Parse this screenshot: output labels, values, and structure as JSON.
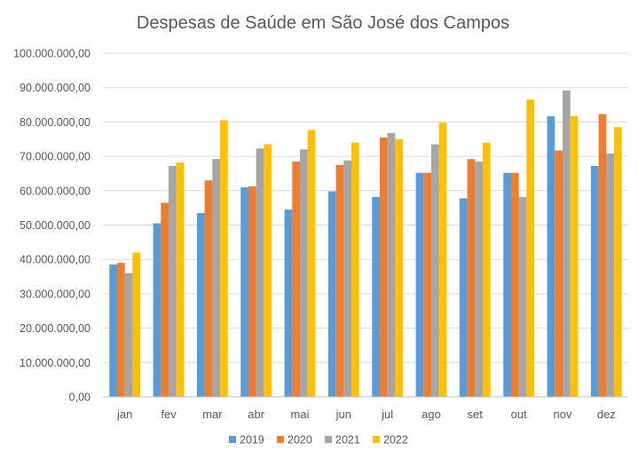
{
  "chart_data": {
    "type": "bar",
    "title": "Despesas de Saúde em São José dos Campos",
    "xlabel": "",
    "ylabel": "",
    "categories": [
      "jan",
      "fev",
      "mar",
      "abr",
      "mai",
      "jun",
      "jul",
      "ago",
      "set",
      "out",
      "nov",
      "dez"
    ],
    "series": [
      {
        "name": "2019",
        "color": "#5B9BD5",
        "values": [
          38500000,
          50500000,
          53500000,
          61000000,
          54500000,
          59800000,
          58200000,
          65200000,
          57800000,
          65200000,
          81700000,
          67200000
        ]
      },
      {
        "name": "2020",
        "color": "#ED7D31",
        "values": [
          39000000,
          56500000,
          63000000,
          61300000,
          68500000,
          67500000,
          75500000,
          65200000,
          69200000,
          65200000,
          71700000,
          82300000
        ]
      },
      {
        "name": "2021",
        "color": "#A5A5A5",
        "values": [
          36000000,
          67200000,
          69200000,
          72300000,
          72000000,
          68800000,
          76800000,
          73500000,
          68500000,
          58200000,
          89200000,
          70800000
        ]
      },
      {
        "name": "2022",
        "color": "#FFC000",
        "values": [
          42000000,
          68200000,
          80500000,
          73500000,
          77700000,
          74000000,
          75000000,
          79800000,
          74000000,
          86500000,
          81700000,
          78500000
        ]
      }
    ],
    "ylim": [
      0,
      100000000
    ],
    "yticks": [
      0,
      10000000,
      20000000,
      30000000,
      40000000,
      50000000,
      60000000,
      70000000,
      80000000,
      90000000,
      100000000
    ],
    "ytick_labels": [
      "0,00",
      "10.000.000,00",
      "20.000.000,00",
      "30.000.000,00",
      "40.000.000,00",
      "50.000.000,00",
      "60.000.000,00",
      "70.000.000,00",
      "80.000.000,00",
      "90.000.000,00",
      "100.000.000,00"
    ],
    "grid": true,
    "legend_position": "bottom-center"
  }
}
